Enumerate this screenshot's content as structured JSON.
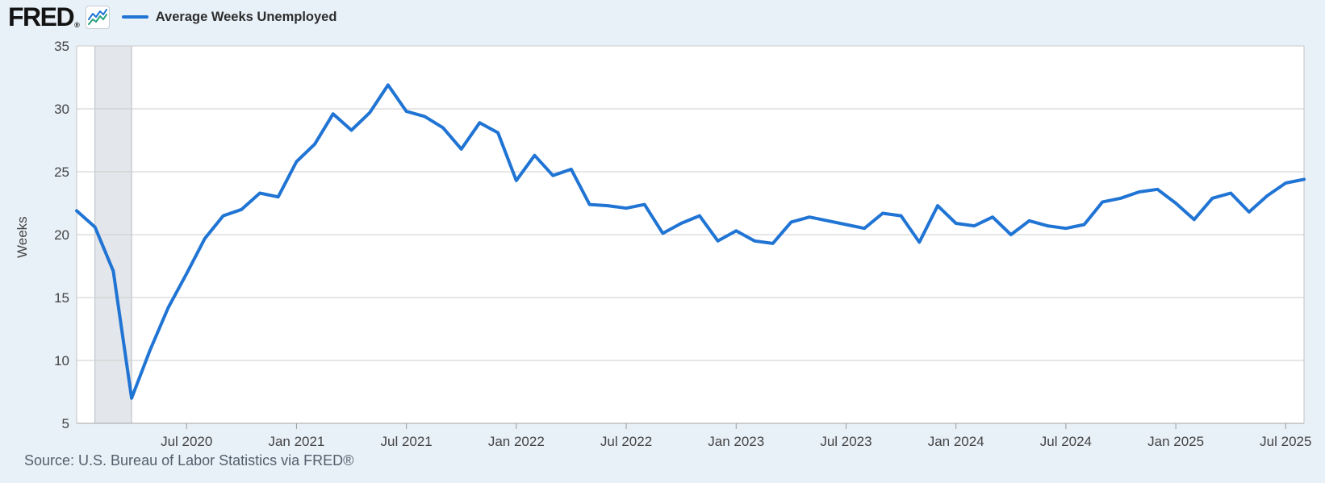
{
  "header": {
    "brand": "FRED",
    "registered_mark": "®",
    "legend": {
      "label": "Average Weeks Unemployed"
    }
  },
  "footer": {
    "source": "Source: U.S. Bureau of Labor Statistics via FRED®"
  },
  "colors": {
    "page_background": "#e8f0f8",
    "plot_background": "#ffffff",
    "series_line": "#2074d4",
    "icon_teal": "#26a17e",
    "gridline": "#cccccc",
    "axis_line": "#a6a6a6",
    "plot_border": "#c4c4c4",
    "tick_mark": "#9b9b9b",
    "tick_label": "#444444",
    "recession_band_fill": "#e3e6ea",
    "recession_band_edge": "#b7bcc1"
  },
  "chart_data": {
    "type": "line",
    "title": "Average Weeks Unemployed",
    "xlabel": "",
    "ylabel": "Weeks",
    "ylim": [
      5,
      35
    ],
    "y_ticks": [
      5,
      10,
      15,
      20,
      25,
      30,
      35
    ],
    "grid": true,
    "legend_position": "top-left",
    "frequency": "monthly",
    "x_start": "2020-01",
    "x_end": "2025-08",
    "x_tick_labels": [
      {
        "label": "Jul 2020",
        "month_index": 6
      },
      {
        "label": "Jan 2021",
        "month_index": 12
      },
      {
        "label": "Jul 2021",
        "month_index": 18
      },
      {
        "label": "Jan 2022",
        "month_index": 24
      },
      {
        "label": "Jul 2022",
        "month_index": 30
      },
      {
        "label": "Jan 2023",
        "month_index": 36
      },
      {
        "label": "Jul 2023",
        "month_index": 42
      },
      {
        "label": "Jan 2024",
        "month_index": 48
      },
      {
        "label": "Jul 2024",
        "month_index": 54
      },
      {
        "label": "Jan 2025",
        "month_index": 60
      },
      {
        "label": "Jul 2025",
        "month_index": 66
      }
    ],
    "recession_band": {
      "from": "2020-02",
      "to": "2020-04",
      "from_index": 1,
      "to_index": 3
    },
    "x": [
      "2020-01",
      "2020-02",
      "2020-03",
      "2020-04",
      "2020-05",
      "2020-06",
      "2020-07",
      "2020-08",
      "2020-09",
      "2020-10",
      "2020-11",
      "2020-12",
      "2021-01",
      "2021-02",
      "2021-03",
      "2021-04",
      "2021-05",
      "2021-06",
      "2021-07",
      "2021-08",
      "2021-09",
      "2021-10",
      "2021-11",
      "2021-12",
      "2022-01",
      "2022-02",
      "2022-03",
      "2022-04",
      "2022-05",
      "2022-06",
      "2022-07",
      "2022-08",
      "2022-09",
      "2022-10",
      "2022-11",
      "2022-12",
      "2023-01",
      "2023-02",
      "2023-03",
      "2023-04",
      "2023-05",
      "2023-06",
      "2023-07",
      "2023-08",
      "2023-09",
      "2023-10",
      "2023-11",
      "2023-12",
      "2024-01",
      "2024-02",
      "2024-03",
      "2024-04",
      "2024-05",
      "2024-06",
      "2024-07",
      "2024-08",
      "2024-09",
      "2024-10",
      "2024-11",
      "2024-12",
      "2025-01",
      "2025-02",
      "2025-03",
      "2025-04",
      "2025-05",
      "2025-06",
      "2025-07",
      "2025-08"
    ],
    "series": [
      {
        "name": "Average Weeks Unemployed",
        "color": "#2074d4",
        "values": [
          21.9,
          20.6,
          17.1,
          7.0,
          10.8,
          14.2,
          16.9,
          19.7,
          21.5,
          22.0,
          23.3,
          23.0,
          25.8,
          27.2,
          29.6,
          28.3,
          29.7,
          31.9,
          29.8,
          29.4,
          28.5,
          26.8,
          28.9,
          28.1,
          24.3,
          26.3,
          24.7,
          25.2,
          22.4,
          22.3,
          22.1,
          22.4,
          20.1,
          20.9,
          21.5,
          19.5,
          20.3,
          19.5,
          19.3,
          21.0,
          21.4,
          21.1,
          20.8,
          20.5,
          21.7,
          21.5,
          19.4,
          22.3,
          20.9,
          20.7,
          21.4,
          20.0,
          21.1,
          20.7,
          20.5,
          20.8,
          22.6,
          22.9,
          23.4,
          23.6,
          22.5,
          21.2,
          22.9,
          23.3,
          21.8,
          23.1,
          24.1,
          24.4
        ]
      }
    ]
  }
}
